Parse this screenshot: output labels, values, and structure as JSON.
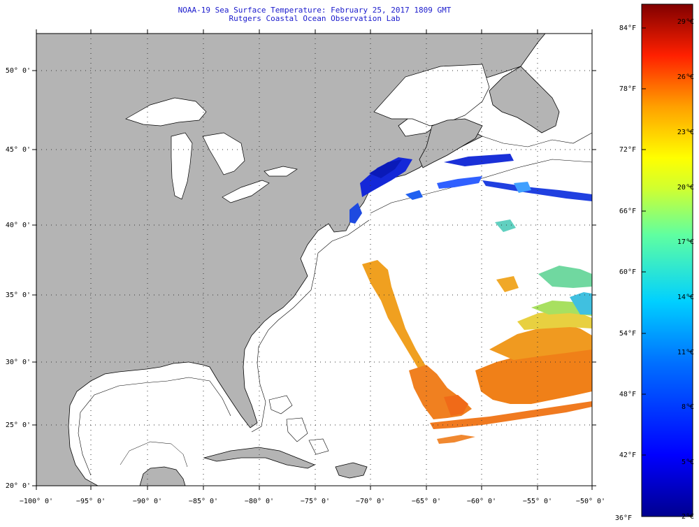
{
  "title": {
    "line1": "NOAA-19 Sea Surface Temperature:  February 25, 2017 1809 GMT",
    "line2": "Rutgers Coastal Ocean Observation Lab"
  },
  "lat_labels": [
    "50° 0'",
    "45° 0'",
    "40° 0'",
    "35° 0'",
    "30° 0'",
    "25° 0'",
    "20° 0'"
  ],
  "lon_labels": [
    "−100° 0'",
    "−95° 0'",
    "−90° 0'",
    "−85° 0'",
    "−80° 0'",
    "−75° 0'",
    "−70° 0'",
    "−65° 0'",
    "−60° 0'",
    "−55° 0'",
    "−50° 0'"
  ],
  "colorbar": {
    "fahrenheit_labels": [
      "84°F",
      "78°F",
      "72°F",
      "66°F",
      "60°F",
      "54°F",
      "48°F",
      "42°F",
      "36°F"
    ],
    "celsius_labels": [
      "29°C",
      "26°C",
      "23°C",
      "20°C",
      "17°C",
      "14°C",
      "11°C",
      "8°C",
      "5°C",
      "2°C"
    ]
  },
  "colors": {
    "land": "#b4b4b4",
    "ocean": "#ffffff",
    "title": "#1a1acc",
    "gridline": "#333333"
  }
}
